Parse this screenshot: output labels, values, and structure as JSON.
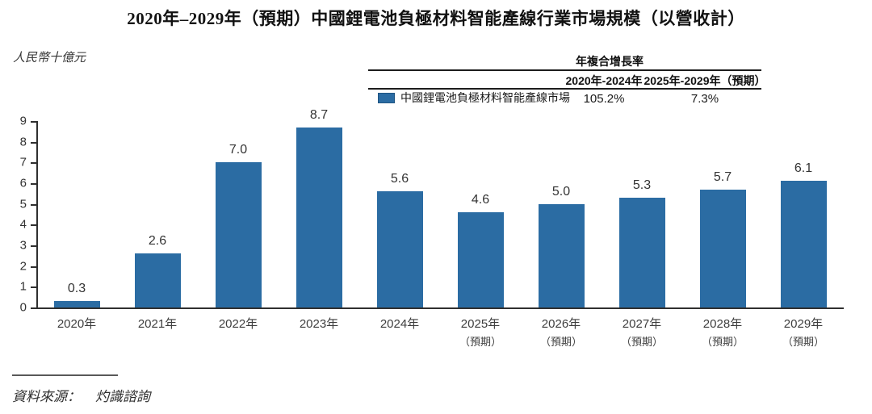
{
  "title": "2020年–2029年（預期）中國鋰電池負極材料智能產線行業市場規模（以營收計）",
  "y_axis_unit": "人民幣十億元",
  "cagr_table": {
    "header": "年複合增長率",
    "col1": "2020年-2024年",
    "col2": "2025年-2029年（預期）",
    "row_label": "中國鋰電池負極材料智能產線市場",
    "val1": "105.2%",
    "val2": "7.3%"
  },
  "source": {
    "label": "資料來源：",
    "value": "灼識諮詢"
  },
  "chart_data": {
    "type": "bar",
    "title": "2020年–2029年（預期）中國鋰電池負極材料智能產線行業市場規模（以營收計）",
    "categories": [
      "2020年",
      "2021年",
      "2022年",
      "2023年",
      "2024年",
      "2025年",
      "2026年",
      "2027年",
      "2028年",
      "2029年"
    ],
    "category_sublabels": [
      "",
      "",
      "",
      "",
      "",
      "（預期）",
      "（預期）",
      "（預期）",
      "（預期）",
      "（預期）"
    ],
    "values": [
      0.3,
      2.6,
      7.0,
      8.7,
      5.6,
      4.6,
      5.0,
      5.3,
      5.7,
      6.1
    ],
    "value_labels": [
      "0.3",
      "2.6",
      "7.0",
      "8.7",
      "5.6",
      "4.6",
      "5.0",
      "5.3",
      "5.7",
      "6.1"
    ],
    "ylabel": "人民幣十億元",
    "xlabel": "",
    "ylim": [
      0,
      9
    ],
    "yticks": [
      0,
      1,
      2,
      3,
      4,
      5,
      6,
      7,
      8,
      9
    ],
    "grid": false,
    "legend": "中國鋰電池負極材料智能產線市場",
    "legend_position": "top",
    "bar_color": "#2b6ca3",
    "axis_color": "#2f2f2f",
    "cagr_2020_2024": "105.2%",
    "cagr_2025_2029": "7.3%"
  }
}
